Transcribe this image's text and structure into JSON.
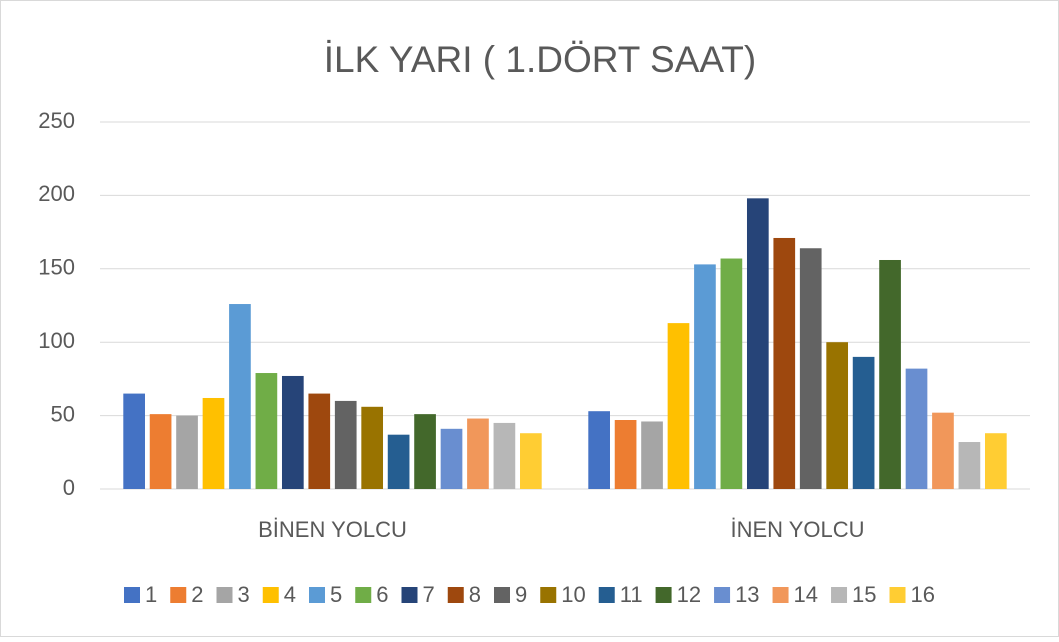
{
  "chart_data": {
    "type": "bar",
    "title": "İLK YARI ( 1.DÖRT SAAT)",
    "categories": [
      "BİNEN YOLCU",
      "İNEN YOLCU"
    ],
    "series": [
      {
        "name": "1",
        "color": "#4472C4",
        "values": [
          65,
          53
        ]
      },
      {
        "name": "2",
        "color": "#ED7D31",
        "values": [
          51,
          47
        ]
      },
      {
        "name": "3",
        "color": "#A5A5A5",
        "values": [
          50,
          46
        ]
      },
      {
        "name": "4",
        "color": "#FFC000",
        "values": [
          62,
          113
        ]
      },
      {
        "name": "5",
        "color": "#5B9BD5",
        "values": [
          126,
          153
        ]
      },
      {
        "name": "6",
        "color": "#70AD47",
        "values": [
          79,
          157
        ]
      },
      {
        "name": "7",
        "color": "#264478",
        "values": [
          77,
          198
        ]
      },
      {
        "name": "8",
        "color": "#9E480E",
        "values": [
          65,
          171
        ]
      },
      {
        "name": "9",
        "color": "#636363",
        "values": [
          60,
          164
        ]
      },
      {
        "name": "10",
        "color": "#997300",
        "values": [
          56,
          100
        ]
      },
      {
        "name": "11",
        "color": "#255E91",
        "values": [
          37,
          90
        ]
      },
      {
        "name": "12",
        "color": "#43682B",
        "values": [
          51,
          156
        ]
      },
      {
        "name": "13",
        "color": "#698ED0",
        "values": [
          41,
          82
        ]
      },
      {
        "name": "14",
        "color": "#F1975A",
        "values": [
          48,
          52
        ]
      },
      {
        "name": "15",
        "color": "#B7B7B7",
        "values": [
          45,
          32
        ]
      },
      {
        "name": "16",
        "color": "#FFCD33",
        "values": [
          38,
          38
        ]
      }
    ],
    "ylim": [
      0,
      250
    ],
    "yticks": [
      0,
      50,
      100,
      150,
      200,
      250
    ],
    "grid": true,
    "legend": "bottom"
  }
}
